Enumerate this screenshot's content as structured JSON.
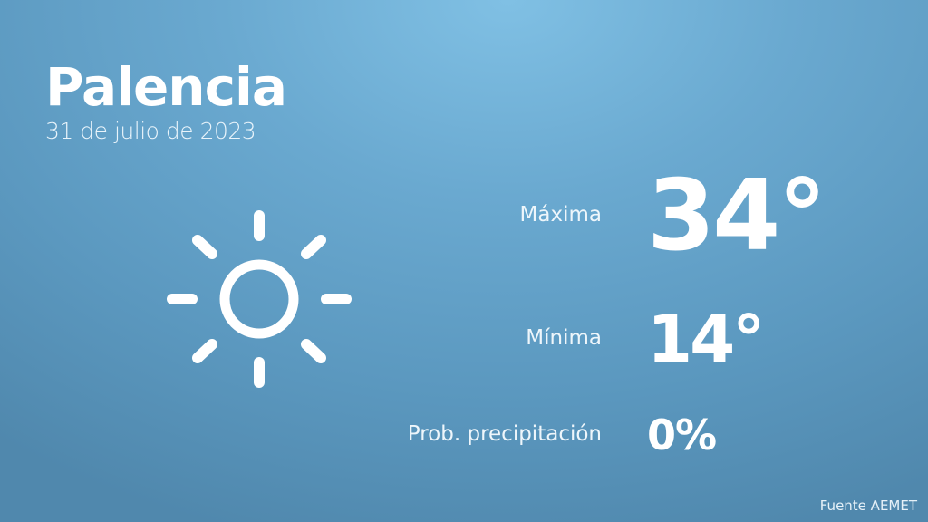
{
  "header": {
    "city": "Palencia",
    "date": "31 de julio de 2023"
  },
  "forecast": {
    "icon": "sun-icon",
    "max_label": "Máxima",
    "max_value": "34°",
    "min_label": "Mínima",
    "min_value": "14°",
    "prob_label": "Prob. precipitación",
    "prob_value": "0%"
  },
  "footer": {
    "source": "Fuente AEMET"
  },
  "colors": {
    "background_top": "#80c0e4",
    "background_bottom": "#5088ad",
    "text": "#ffffff"
  }
}
